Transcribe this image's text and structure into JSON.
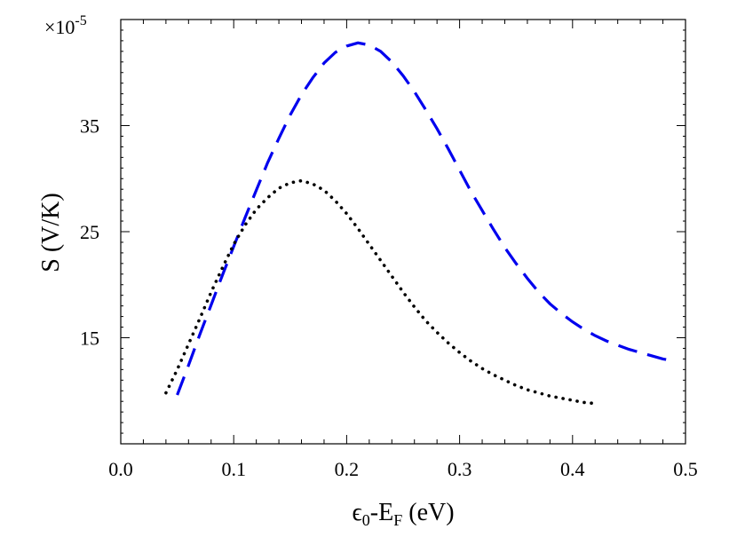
{
  "chart_data": {
    "type": "line",
    "title": "",
    "xlabel": {
      "symbol": "ϵ",
      "symbol_sub": "0",
      "mid": "-E",
      "mid_sub": "F",
      "unit": " (eV)"
    },
    "ylabel": "S (V/K)",
    "y_multiplier": {
      "base": "×10",
      "exponent": "-5"
    },
    "xlim": [
      0.0,
      0.5
    ],
    "ylim": [
      5,
      45
    ],
    "x_ticks": [
      0.0,
      0.1,
      0.2,
      0.3,
      0.4,
      0.5
    ],
    "x_tick_labels": [
      "0.0",
      "0.1",
      "0.2",
      "0.3",
      "0.4",
      "0.5"
    ],
    "y_ticks": [
      15,
      25,
      35
    ],
    "y_tick_labels": [
      "15",
      "25",
      "35"
    ],
    "grid": false,
    "series": [
      {
        "style": "dashed",
        "color": "#0000ee",
        "x": [
          0.05,
          0.06,
          0.07,
          0.08,
          0.09,
          0.1,
          0.11,
          0.12,
          0.13,
          0.14,
          0.15,
          0.16,
          0.17,
          0.18,
          0.19,
          0.2,
          0.21,
          0.22,
          0.23,
          0.24,
          0.25,
          0.26,
          0.27,
          0.28,
          0.29,
          0.3,
          0.31,
          0.32,
          0.33,
          0.34,
          0.35,
          0.36,
          0.37,
          0.38,
          0.39,
          0.4,
          0.41,
          0.42,
          0.43,
          0.44,
          0.45,
          0.46,
          0.47,
          0.48,
          0.49
        ],
        "y": [
          9.6,
          12.4,
          15.3,
          18.1,
          20.9,
          23.6,
          26.3,
          28.9,
          31.5,
          33.8,
          36.0,
          37.9,
          39.5,
          40.9,
          41.9,
          42.5,
          42.8,
          42.6,
          42.0,
          41.0,
          39.7,
          38.2,
          36.5,
          34.7,
          32.8,
          30.8,
          28.8,
          27.0,
          25.2,
          23.5,
          22.0,
          20.6,
          19.3,
          18.2,
          17.3,
          16.5,
          15.8,
          15.2,
          14.7,
          14.3,
          13.9,
          13.6,
          13.3,
          13.0,
          12.8
        ]
      },
      {
        "style": "dotted",
        "color": "#000000",
        "x": [
          0.04,
          0.05,
          0.06,
          0.07,
          0.08,
          0.09,
          0.1,
          0.11,
          0.12,
          0.13,
          0.14,
          0.15,
          0.16,
          0.17,
          0.18,
          0.19,
          0.2,
          0.21,
          0.22,
          0.23,
          0.24,
          0.25,
          0.26,
          0.27,
          0.28,
          0.29,
          0.3,
          0.31,
          0.32,
          0.33,
          0.34,
          0.35,
          0.36,
          0.37,
          0.38,
          0.39,
          0.4,
          0.41,
          0.42
        ],
        "y": [
          9.8,
          12.0,
          14.4,
          16.8,
          19.3,
          21.6,
          23.8,
          25.6,
          27.1,
          28.2,
          29.1,
          29.6,
          29.8,
          29.5,
          28.9,
          27.9,
          26.7,
          25.3,
          23.8,
          22.3,
          20.8,
          19.3,
          17.9,
          16.6,
          15.5,
          14.5,
          13.6,
          12.8,
          12.1,
          11.5,
          11.0,
          10.5,
          10.1,
          9.8,
          9.5,
          9.3,
          9.1,
          8.9,
          8.8
        ]
      }
    ]
  }
}
